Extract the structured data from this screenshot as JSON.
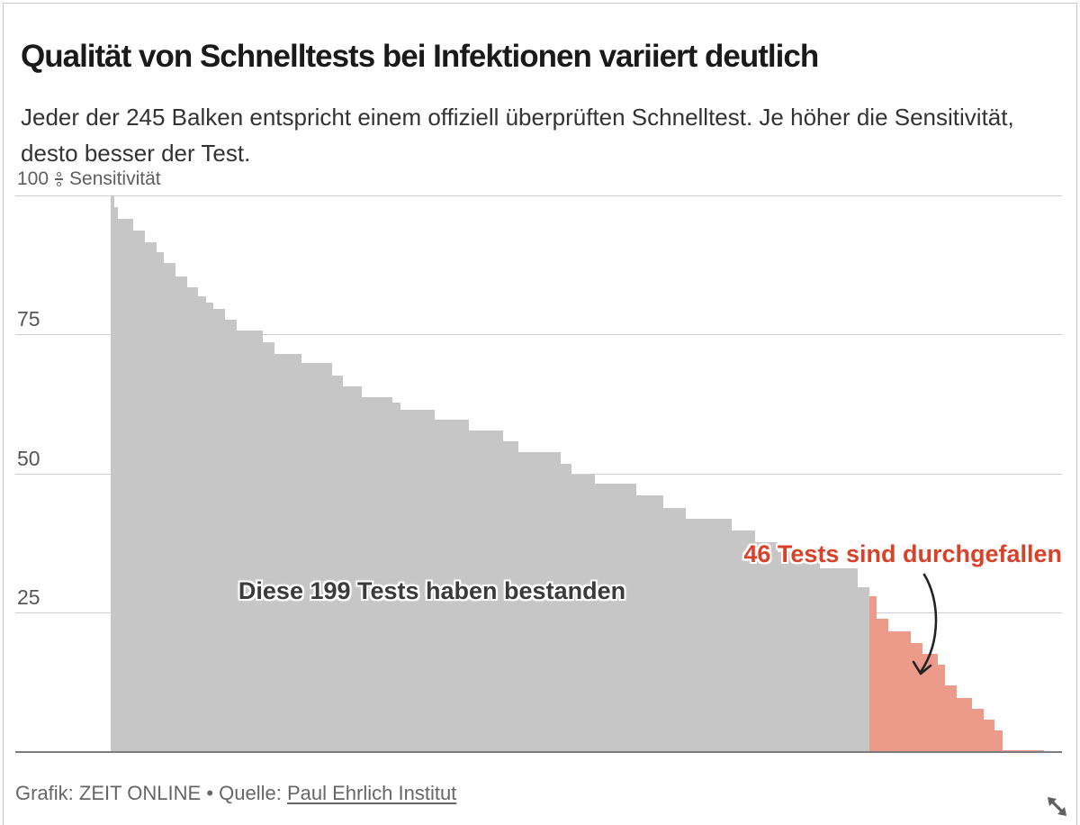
{
  "header": {
    "title": "Qualität von Schnelltests bei Infektionen variiert deutlich",
    "subtitle": "Jeder der 245 Balken entspricht einem offiziell überprüften Schnelltest. Je höher die Sensitivität, desto besser der Test."
  },
  "axis": {
    "top_tick_value": "100",
    "unit_label": "Sensitivität",
    "tick_labels": [
      "75",
      "50",
      "25"
    ]
  },
  "annotations": {
    "passed": "Diese 199 Tests haben bestanden",
    "failed": "46 Tests sind durchgefallen"
  },
  "footer": {
    "credit": "Grafik: ZEIT ONLINE",
    "separator": "•",
    "source_label": "Quelle:",
    "source_link": "Paul Ehrlich Institut"
  },
  "colors": {
    "passed_bar": "#c6c6c6",
    "failed_bar": "#ec9b8b",
    "failed_text": "#d7422b",
    "gridline": "#cfcfcf",
    "baseline": "#7c7c7c"
  },
  "chart_data": {
    "type": "bar",
    "title": "Qualität von Schnelltests bei Infektionen variiert deutlich",
    "xlabel": "",
    "ylabel": "Sensitivität (%)",
    "ylim": [
      0,
      100
    ],
    "gridlines": [
      100,
      75,
      50,
      25
    ],
    "grid": true,
    "legend_position": "none",
    "n_bars": 245,
    "n_passed": 199,
    "n_failed": 46,
    "note": "Each bar = one officially evaluated rapid antigen test, sorted by descending sensitivity; steps are [bar_count, sensitivity_percent]",
    "series": [
      {
        "name": "bestanden",
        "steps": [
          [
            1,
            100
          ],
          [
            1,
            98
          ],
          [
            4,
            96
          ],
          [
            3,
            93.8
          ],
          [
            3,
            91.8
          ],
          [
            2,
            90
          ],
          [
            3,
            88
          ],
          [
            3,
            85.5
          ],
          [
            3,
            83.7
          ],
          [
            2,
            82
          ],
          [
            2,
            80.8
          ],
          [
            3,
            79.7
          ],
          [
            3,
            77.8
          ],
          [
            7,
            75.8
          ],
          [
            3,
            73.8
          ],
          [
            7,
            71.6
          ],
          [
            8,
            70
          ],
          [
            3,
            67.8
          ],
          [
            5,
            65.8
          ],
          [
            8,
            63.8
          ],
          [
            2,
            62.9
          ],
          [
            9,
            61.6
          ],
          [
            9,
            59.8
          ],
          [
            9,
            57.9
          ],
          [
            4,
            55.9
          ],
          [
            11,
            53.9
          ],
          [
            3,
            51.9
          ],
          [
            6,
            50
          ],
          [
            11,
            48.3
          ],
          [
            7,
            46.2
          ],
          [
            6,
            44
          ],
          [
            12,
            41.9
          ],
          [
            6,
            39.8
          ],
          [
            6,
            37.8
          ],
          [
            5,
            36
          ],
          [
            6,
            34.6
          ],
          [
            10,
            33.1
          ],
          [
            3,
            29.6
          ]
        ]
      },
      {
        "name": "durchgefallen",
        "steps": [
          [
            2,
            28
          ],
          [
            3,
            24
          ],
          [
            6,
            21.8
          ],
          [
            3,
            19.6
          ],
          [
            4,
            17.7
          ],
          [
            2,
            15.8
          ],
          [
            3,
            12
          ],
          [
            4,
            9.8
          ],
          [
            3,
            7.8
          ],
          [
            3,
            5.8
          ],
          [
            2,
            3.9
          ],
          [
            11,
            0.4
          ]
        ]
      }
    ]
  }
}
